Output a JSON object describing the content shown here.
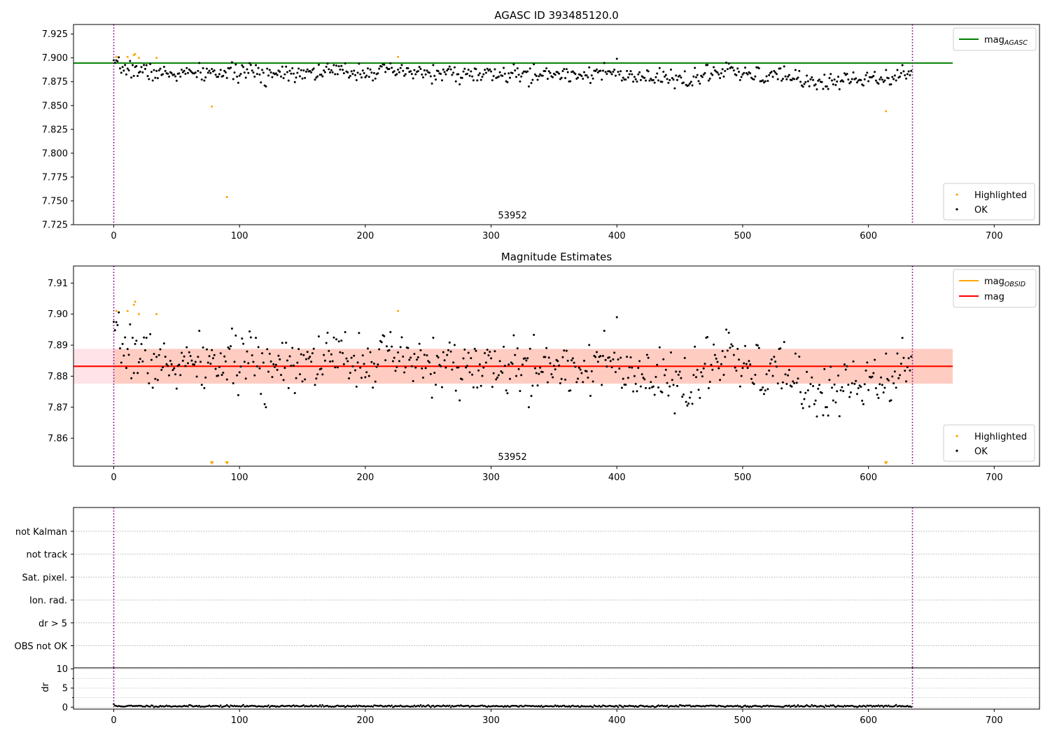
{
  "chart_data": [
    {
      "type": "scatter",
      "title": "AGASC ID 393485120.0",
      "xlabel": "",
      "ylabel": "",
      "xlim": [
        -32,
        736
      ],
      "ylim": [
        7.725,
        7.935
      ],
      "xticks": [
        0,
        100,
        200,
        300,
        400,
        500,
        600,
        700
      ],
      "yticks": [
        7.725,
        7.75,
        7.775,
        7.8,
        7.825,
        7.85,
        7.875,
        7.9,
        7.925
      ],
      "ytick_decimals": 3,
      "obsid_label": {
        "text": "53952",
        "x": 317
      },
      "vlines": [
        0,
        635
      ],
      "hlines": [
        {
          "name": "mag_AGASC",
          "y": 7.8945,
          "color": "#008000"
        }
      ],
      "legend_top": [
        {
          "label": "mag",
          "sub": "AGASC",
          "color": "#008000"
        }
      ],
      "legend_bottom": [
        {
          "label": "Highlighted",
          "color": "#ffa500"
        },
        {
          "label": "OK",
          "color": "#000000"
        }
      ],
      "series": [
        {
          "name": "OK",
          "color": "#000000",
          "generator": {
            "n": 635,
            "segments": [
              [
                0,
                7.891
              ],
              [
                40,
                7.883
              ],
              [
                110,
                7.885
              ],
              [
                200,
                7.886
              ],
              [
                300,
                7.882
              ],
              [
                400,
                7.884
              ],
              [
                405,
                7.879
              ],
              [
                460,
                7.878
              ],
              [
                480,
                7.885
              ],
              [
                500,
                7.882
              ],
              [
                540,
                7.88
              ],
              [
                560,
                7.874
              ],
              [
                600,
                7.88
              ],
              [
                635,
                7.884
              ]
            ],
            "noise": 0.0045,
            "seed": 7
          },
          "outliers": [
            [
              120,
              7.871
            ],
            [
              121,
              7.87
            ],
            [
              330,
              7.87
            ],
            [
              400,
              7.899
            ],
            [
              446,
              7.868
            ],
            [
              466,
              7.873
            ],
            [
              487,
              7.895
            ],
            [
              489,
              7.894
            ],
            [
              557,
              7.871
            ],
            [
              566,
              7.87
            ],
            [
              596,
              7.871
            ],
            [
              608,
              7.873
            ],
            [
              617,
              7.872
            ]
          ]
        },
        {
          "name": "Highlighted",
          "color": "#ffa500",
          "points": [
            [
              2,
              7.901
            ],
            [
              11,
              7.901
            ],
            [
              16,
              7.903
            ],
            [
              17,
              7.904
            ],
            [
              20,
              7.9
            ],
            [
              34,
              7.9
            ],
            [
              78,
              7.849
            ],
            [
              90,
              7.754
            ],
            [
              226,
              7.901
            ],
            [
              614,
              7.844
            ]
          ]
        }
      ]
    },
    {
      "type": "scatter",
      "title": "Magnitude Estimates",
      "xlabel": "",
      "ylabel": "",
      "xlim": [
        -32,
        736
      ],
      "ylim": [
        7.851,
        7.9155
      ],
      "xticks": [
        0,
        100,
        200,
        300,
        400,
        500,
        600,
        700
      ],
      "yticks": [
        7.86,
        7.87,
        7.88,
        7.89,
        7.9,
        7.91
      ],
      "ytick_decimals": 2,
      "obsid_label": {
        "text": "53952",
        "x": 317
      },
      "vlines": [
        0,
        635
      ],
      "hlines": [
        {
          "name": "mag_OBSID",
          "y": 7.8832,
          "color": "#ffa500"
        },
        {
          "name": "mag",
          "y": 7.8832,
          "color": "#ff0000"
        }
      ],
      "bands": [
        {
          "x": [
            -32,
            667
          ],
          "y": [
            7.8776,
            7.8888
          ],
          "color": "#ffc0cb",
          "opacity": 0.45
        },
        {
          "x": [
            0,
            667
          ],
          "y": [
            7.8776,
            7.8888
          ],
          "color": "#ffa07a",
          "opacity": 0.35
        }
      ],
      "legend_top": [
        {
          "label": "mag",
          "sub": "OBSID",
          "color": "#ffa500"
        },
        {
          "label": "mag",
          "sub": "",
          "color": "#ff0000"
        }
      ],
      "legend_bottom": [
        {
          "label": "Highlighted",
          "color": "#ffa500"
        },
        {
          "label": "OK",
          "color": "#000000"
        }
      ],
      "series": [
        {
          "name": "OK",
          "color": "#000000",
          "generator": {
            "n": 635,
            "segments": [
              [
                0,
                7.891
              ],
              [
                40,
                7.883
              ],
              [
                110,
                7.885
              ],
              [
                200,
                7.886
              ],
              [
                300,
                7.882
              ],
              [
                400,
                7.884
              ],
              [
                405,
                7.879
              ],
              [
                460,
                7.878
              ],
              [
                480,
                7.885
              ],
              [
                500,
                7.882
              ],
              [
                540,
                7.88
              ],
              [
                560,
                7.874
              ],
              [
                600,
                7.88
              ],
              [
                635,
                7.884
              ]
            ],
            "noise": 0.0045,
            "seed": 7
          },
          "outliers": [
            [
              120,
              7.871
            ],
            [
              121,
              7.87
            ],
            [
              330,
              7.87
            ],
            [
              400,
              7.899
            ],
            [
              446,
              7.868
            ],
            [
              466,
              7.873
            ],
            [
              487,
              7.895
            ],
            [
              489,
              7.894
            ],
            [
              557,
              7.871
            ],
            [
              566,
              7.87
            ],
            [
              596,
              7.871
            ],
            [
              608,
              7.873
            ],
            [
              617,
              7.872
            ]
          ]
        },
        {
          "name": "Highlighted",
          "color": "#ffa500",
          "points": [
            [
              2,
              7.901
            ],
            [
              11,
              7.901
            ],
            [
              16,
              7.903
            ],
            [
              17,
              7.904
            ],
            [
              20,
              7.9
            ],
            [
              34,
              7.9
            ],
            [
              226,
              7.901
            ]
          ],
          "below_range": [
            78,
            90,
            614
          ]
        }
      ]
    },
    {
      "type": "scatter",
      "title": "",
      "xlim": [
        -32,
        736
      ],
      "categories": [
        "not Kalman",
        "not track",
        "Sat. pixel.",
        "Ion. rad.",
        "dr > 5",
        "OBS not OK"
      ],
      "vlines": [
        0,
        635
      ],
      "flags": []
    },
    {
      "type": "line",
      "title": "",
      "xlabel": "",
      "ylabel": "dr",
      "xlim": [
        -32,
        736
      ],
      "ylim": [
        -0.5,
        10.3
      ],
      "xticks": [
        0,
        100,
        200,
        300,
        400,
        500,
        600,
        700
      ],
      "yticks": [
        0,
        5,
        10
      ],
      "vlines": [
        0,
        635
      ],
      "series": [
        {
          "name": "dr",
          "color": "#000000",
          "generator": {
            "n": 635,
            "base": 0.28,
            "noise": 0.12,
            "seed": 11
          },
          "points": [
            [
              0,
              0.8
            ]
          ]
        }
      ]
    }
  ]
}
